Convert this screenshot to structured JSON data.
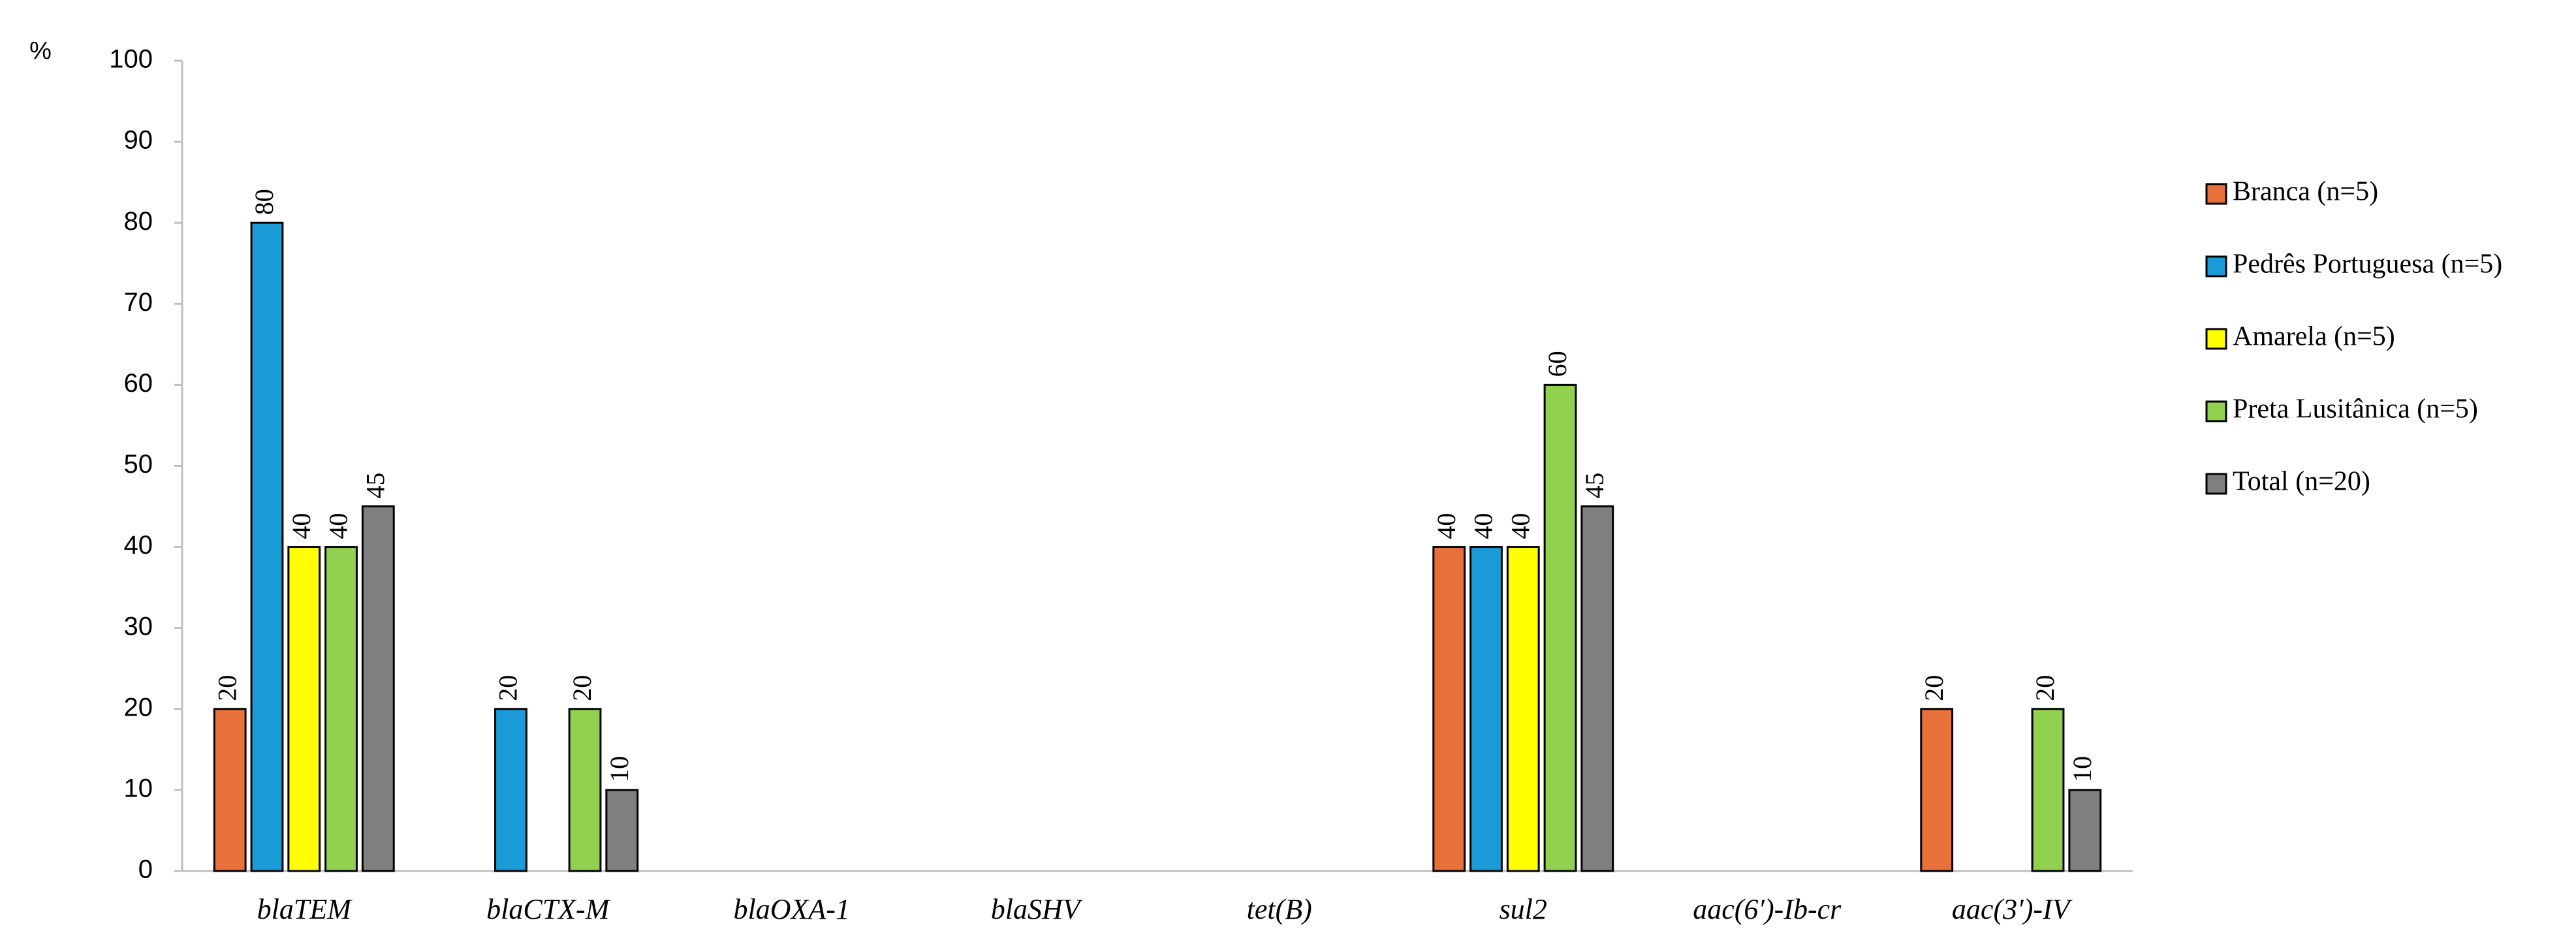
{
  "chart_data": {
    "type": "bar",
    "y_label": "%",
    "categories": [
      "blaTEM",
      "blaCTX-M",
      "blaOXA-1",
      "blaSHV",
      "tet(B)",
      "sul2",
      "aac(6′)-Ib-cr",
      "aac(3′)-IV"
    ],
    "series": [
      {
        "name": "Branca (n=5)",
        "color": "#e8703a",
        "values": [
          20,
          0,
          0,
          0,
          0,
          40,
          0,
          20
        ],
        "value_labels": [
          "20",
          null,
          null,
          null,
          null,
          "40",
          null,
          "20"
        ]
      },
      {
        "name": "Pedrês Portuguesa (n=5)",
        "color": "#1a9ad6",
        "values": [
          80,
          20,
          0,
          0,
          0,
          40,
          0,
          0
        ],
        "value_labels": [
          "80",
          "20",
          null,
          null,
          null,
          "40",
          null,
          null
        ]
      },
      {
        "name": "Amarela (n=5)",
        "color": "#ffff00",
        "values": [
          40,
          0,
          0,
          0,
          0,
          40,
          0,
          0
        ],
        "value_labels": [
          "40",
          null,
          null,
          null,
          null,
          "40",
          null,
          null
        ]
      },
      {
        "name": "Preta Lusitânica (n=5)",
        "color": "#92d050",
        "values": [
          40,
          20,
          0,
          0,
          0,
          60,
          0,
          20
        ],
        "value_labels": [
          "40",
          "20",
          null,
          null,
          null,
          "60",
          null,
          "20"
        ]
      },
      {
        "name": "Total (n=20)",
        "color": "#7f7f7f",
        "values": [
          45,
          10,
          0,
          0,
          0,
          45,
          0,
          10
        ],
        "value_labels": [
          "45",
          "10",
          null,
          null,
          null,
          "45",
          null,
          "10"
        ]
      }
    ],
    "ylim": [
      0,
      100
    ],
    "yticks": [
      0,
      10,
      20,
      30,
      40,
      50,
      60,
      70,
      80,
      90,
      100
    ],
    "grid": false,
    "legend": "right"
  }
}
